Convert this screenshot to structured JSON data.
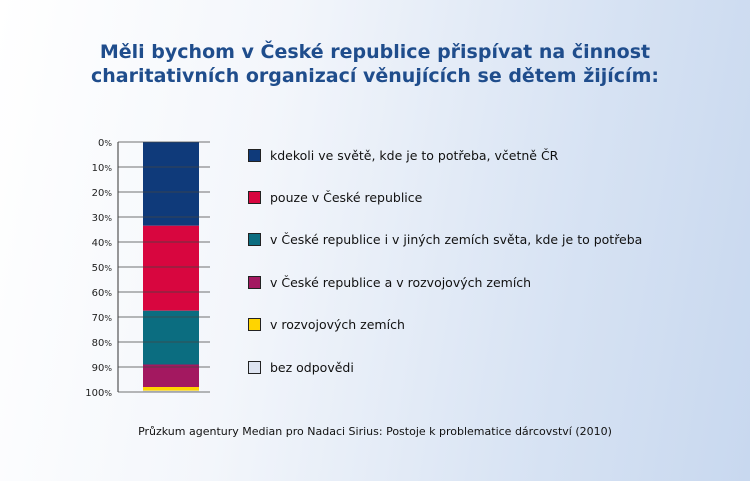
{
  "title_lines": [
    "Měli bychom v České republice přispívat na činnost",
    "charitativních organizací věnujících se dětem žijícím:"
  ],
  "source_note": "Průzkum agentury Median pro Nadaci Sirius: Postoje k problematice dárcovství (2010)",
  "chart_data": {
    "type": "bar",
    "stacked": true,
    "orientation": "vertical",
    "axis_reversed": true,
    "ylim": [
      0,
      100
    ],
    "y_ticks": [
      "0%",
      "10%",
      "20%",
      "30%",
      "40%",
      "50%",
      "60%",
      "70%",
      "80%",
      "90%",
      "100%"
    ],
    "series": [
      {
        "name": "kdekoli ve světě, kde je to potřeba, včetně ČR",
        "value": 33.5,
        "color": "#0f3a7a"
      },
      {
        "name": "pouze v České republice",
        "value": 34,
        "color": "#d8063f"
      },
      {
        "name": "v České republice i v jiných zemích světa, kde je to potřeba",
        "value": 21.5,
        "color": "#0b6d80"
      },
      {
        "name": "v České republice a v rozvojových zemích",
        "value": 9,
        "color": "#a31860"
      },
      {
        "name": "v rozvojových zemích",
        "value": 1.5,
        "color": "#ffd400"
      },
      {
        "name": "bez odpovědi",
        "value": 0.5,
        "color": "#dde3f0"
      }
    ],
    "legend_position": "right",
    "grid": false
  }
}
